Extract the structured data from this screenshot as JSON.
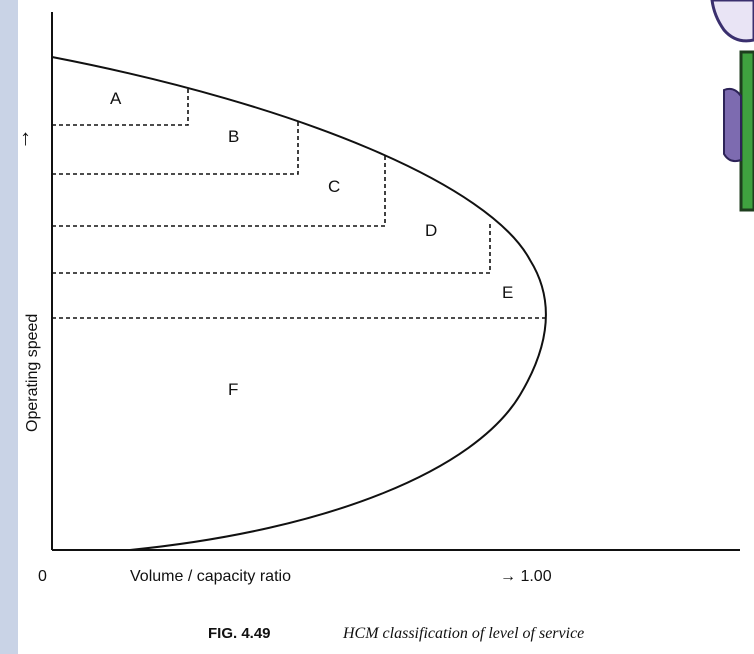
{
  "diagram": {
    "y_axis_label": "Operating speed",
    "y_arrow": "↑",
    "x_axis_label": "Volume / capacity ratio",
    "x_origin": "0",
    "x_end_label": "→ 1.00",
    "regions": [
      "A",
      "B",
      "C",
      "D",
      "E",
      "F"
    ]
  },
  "caption": {
    "figure_number": "FIG. 4.49",
    "text": "HCM classification of level of service"
  },
  "colors": {
    "background": "#c9d3e6",
    "sheet": "#ffffff",
    "ink": "#111111",
    "icon_green": "#3fa13f",
    "icon_purple": "#7d6bb0"
  }
}
